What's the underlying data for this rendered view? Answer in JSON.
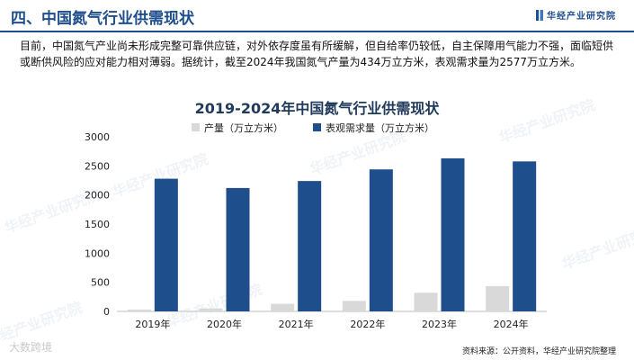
{
  "header": {
    "title": "四、中国氮气行业供需现状",
    "brand": "华经产业研究院"
  },
  "paragraph": "目前，中国氮气产业尚未形成完整可靠供应链，对外依存度虽有所缓解，但自给率仍较低，自主保障用气能力不强，面临短供或断供风险的应对能力相对薄弱。据统计，截至2024年我国氮气产量为434万立方米，表观需求量为2577万立方米。",
  "watermark": "华经产业研究院",
  "corner_mark": "大数跨境",
  "source": "资料来源：公开资料，华经产业研究院整理",
  "colors": {
    "production": "#d9d9d9",
    "demand": "#1f4e8c",
    "accent": "#1f4e8c"
  },
  "chart_data": {
    "type": "bar",
    "title": "2019-2024年中国氮气行业供需现状",
    "categories": [
      "2019年",
      "2020年",
      "2021年",
      "2022年",
      "2023年",
      "2024年"
    ],
    "series": [
      {
        "name": "产量（万立方米）",
        "values": [
          30,
          50,
          130,
          180,
          320,
          434
        ]
      },
      {
        "name": "表观需求量（万立方米）",
        "values": [
          2280,
          2120,
          2240,
          2440,
          2630,
          2577
        ]
      }
    ],
    "ylim": [
      0,
      3000
    ],
    "yticks": [
      0,
      500,
      1000,
      1500,
      2000,
      2500,
      3000
    ],
    "legend": "top-left",
    "grid": false,
    "xlabel": "",
    "ylabel": ""
  }
}
